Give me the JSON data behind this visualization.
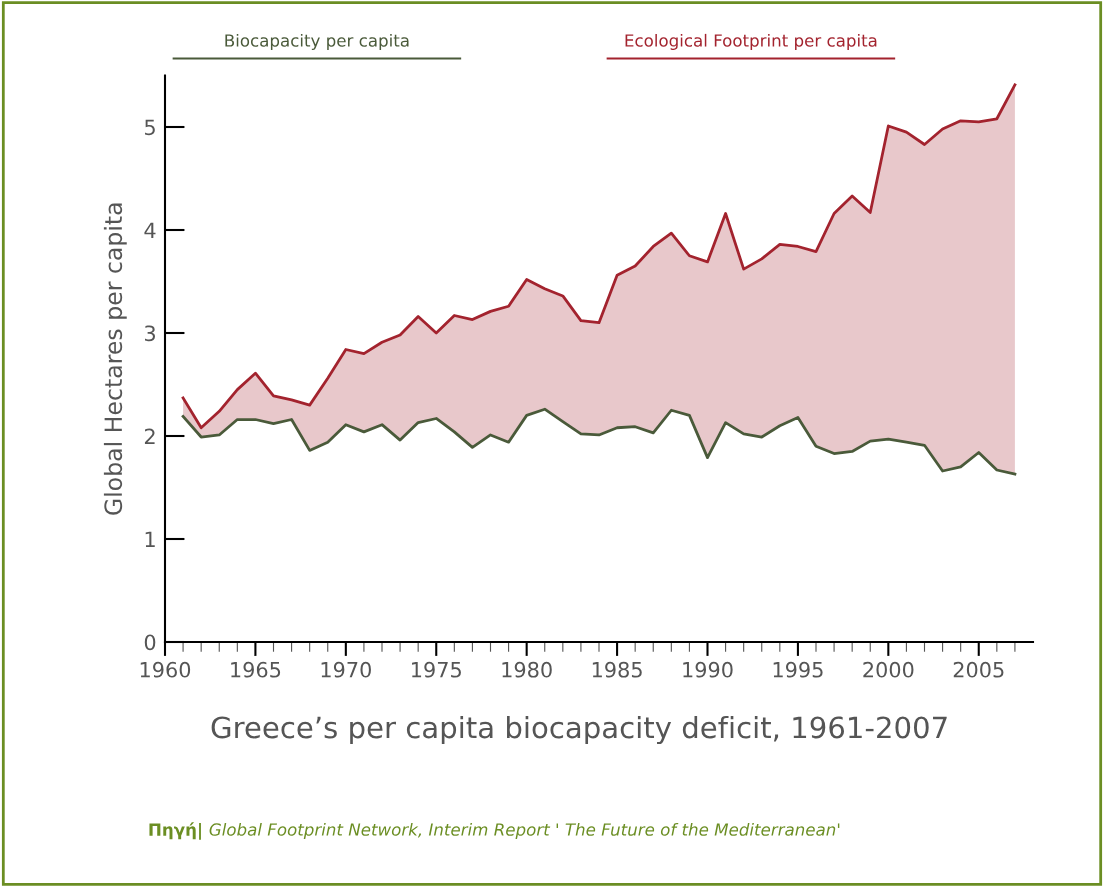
{
  "chart_data": {
    "type": "line",
    "title": "Greece’s per capita biocapacity deficit, 1961-2007",
    "ylabel": "Global Hectares per capita",
    "annotations": [
      "Πηγή|",
      "Global Footprint Network, Interim Report ' The Future of the Mediterranean'"
    ],
    "x": [
      1961,
      1962,
      1963,
      1964,
      1965,
      1966,
      1967,
      1968,
      1969,
      1970,
      1971,
      1972,
      1973,
      1974,
      1975,
      1976,
      1977,
      1978,
      1979,
      1980,
      1981,
      1982,
      1983,
      1984,
      1985,
      1986,
      1987,
      1988,
      1989,
      1990,
      1991,
      1992,
      1993,
      1994,
      1995,
      1996,
      1997,
      1998,
      1999,
      2000,
      2001,
      2002,
      2003,
      2004,
      2005,
      2006,
      2007
    ],
    "series": [
      {
        "name": "Biocapacity per capita",
        "color": "#4a5a3a",
        "values": [
          2.19,
          1.99,
          2.01,
          2.16,
          2.16,
          2.12,
          2.16,
          1.86,
          1.94,
          2.11,
          2.04,
          2.11,
          1.96,
          2.13,
          2.17,
          2.04,
          1.89,
          2.01,
          1.94,
          2.2,
          2.26,
          2.14,
          2.02,
          2.01,
          2.08,
          2.09,
          2.03,
          2.25,
          2.2,
          1.79,
          2.13,
          2.02,
          1.99,
          2.1,
          2.18,
          1.9,
          1.83,
          1.85,
          1.95,
          1.97,
          1.94,
          1.91,
          1.66,
          1.7,
          1.84,
          1.67,
          1.63
        ]
      },
      {
        "name": "Ecological Footprint per capita",
        "color": "#a3232e",
        "values": [
          2.37,
          2.08,
          2.24,
          2.45,
          2.61,
          2.39,
          2.35,
          2.3,
          2.56,
          2.84,
          2.8,
          2.91,
          2.98,
          3.16,
          3.0,
          3.17,
          3.13,
          3.21,
          3.26,
          3.52,
          3.43,
          3.36,
          3.12,
          3.1,
          3.56,
          3.65,
          3.84,
          3.97,
          3.75,
          3.69,
          4.16,
          3.62,
          3.72,
          3.86,
          3.84,
          3.79,
          4.16,
          4.33,
          4.17,
          5.01,
          4.95,
          4.83,
          4.98,
          5.06,
          5.05,
          5.08,
          5.41
        ],
        "lower": [
          2.19,
          1.99,
          2.01,
          2.16,
          2.16,
          2.12,
          2.16,
          1.86,
          1.94,
          2.11,
          2.04,
          2.11,
          1.96,
          2.13,
          2.17,
          2.04,
          1.89,
          2.01,
          1.94,
          2.2,
          2.26,
          2.14,
          2.02,
          2.01,
          2.08,
          2.09,
          2.03,
          2.25,
          2.2,
          1.79,
          2.13,
          2.02,
          1.99,
          2.1,
          2.18,
          1.9,
          1.83,
          1.85,
          1.95,
          1.97,
          1.94,
          1.91,
          1.66,
          1.7,
          1.84,
          1.67,
          1.63
        ],
        "upper": [
          2.37,
          2.08,
          2.24,
          2.45,
          2.61,
          2.39,
          2.35,
          2.3,
          2.56,
          2.84,
          2.8,
          2.91,
          2.98,
          3.16,
          3.0,
          3.17,
          3.13,
          3.21,
          3.26,
          3.52,
          3.43,
          3.36,
          3.12,
          3.1,
          3.56,
          3.65,
          3.84,
          3.97,
          3.75,
          3.69,
          4.16,
          3.62,
          3.72,
          3.86,
          3.84,
          3.79,
          4.16,
          4.33,
          4.17,
          5.01,
          4.95,
          4.83,
          4.98,
          5.06,
          5.05,
          5.08,
          5.41
        ]
      }
    ],
    "xlim": [
      1960,
      2008
    ],
    "xticks": [
      1960,
      {
        "value": 1961,
        "label": null
      },
      {
        "value": 1962,
        "label": null
      },
      {
        "value": 1963,
        "label": null
      },
      {
        "value": 1964,
        "label": null
      },
      1965,
      {
        "value": 1966,
        "label": null
      },
      {
        "value": 1967,
        "label": null
      },
      {
        "value": 1968,
        "label": null
      },
      {
        "value": 1969,
        "label": null
      },
      1970,
      {
        "value": 1971,
        "label": null
      },
      {
        "value": 1972,
        "label": null
      },
      {
        "value": 1973,
        "label": null
      },
      {
        "value": 1974,
        "label": null
      },
      1975,
      {
        "value": 1976,
        "label": null
      },
      {
        "value": 1977,
        "label": null
      },
      {
        "value": 1978,
        "label": null
      },
      {
        "value": 1979,
        "label": null
      },
      1980,
      {
        "value": 1981,
        "label": null
      },
      {
        "value": 1982,
        "label": null
      },
      {
        "value": 1983,
        "label": null
      },
      {
        "value": 1984,
        "label": null
      },
      1985,
      {
        "value": 1986,
        "label": null
      },
      {
        "value": 1987,
        "label": null
      },
      {
        "value": 1988,
        "label": null
      },
      {
        "value": 1989,
        "label": null
      },
      1990,
      {
        "value": 1991,
        "label": null
      },
      {
        "value": 1992,
        "label": null
      },
      {
        "value": 1993,
        "label": null
      },
      {
        "value": 1994,
        "label": null
      },
      1995,
      {
        "value": 1996,
        "label": null
      },
      {
        "value": 1997,
        "label": null
      },
      {
        "value": 1998,
        "label": null
      },
      {
        "value": 1999,
        "label": null
      },
      2000,
      {
        "value": 2001,
        "label": null
      },
      {
        "value": 2002,
        "label": null
      },
      {
        "value": 2003,
        "label": null
      },
      {
        "value": 2004,
        "label": null
      },
      2005,
      {
        "value": 2006,
        "label": null
      },
      {
        "value": 2007,
        "label": null
      }
    ],
    "ylim": [
      0,
      5.5
    ],
    "yticks": [
      0,
      1,
      2,
      3,
      4,
      5
    ],
    "grid": false,
    "legend": "top",
    "line_style": "solid",
    "marker": "none"
  }
}
